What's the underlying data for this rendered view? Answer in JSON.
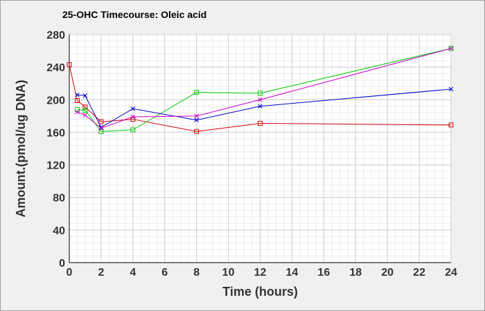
{
  "chart_data": {
    "type": "line",
    "title": "25-OHC Timecourse: Oleic acid",
    "xlabel": "Time (hours)",
    "ylabel": "Amount.(pmol/ug DNA)",
    "xlim": [
      0,
      24
    ],
    "ylim": [
      0,
      280
    ],
    "xticks": [
      0,
      2,
      4,
      6,
      8,
      10,
      12,
      14,
      16,
      18,
      20,
      22,
      24
    ],
    "yticks": [
      0,
      40,
      80,
      120,
      160,
      200,
      240,
      280
    ],
    "minor_grid": true,
    "grid": true,
    "legend": "none",
    "series": [
      {
        "color": "#d00000",
        "marker": "square",
        "x": [
          0,
          0.5,
          1,
          2,
          4,
          8,
          12,
          24
        ],
        "y": [
          243,
          199,
          191,
          173,
          176,
          161,
          171,
          169
        ]
      },
      {
        "color": "#00cc00",
        "marker": "square",
        "x": [
          0.5,
          1,
          2,
          4,
          8,
          12,
          24
        ],
        "y": [
          188,
          187,
          161,
          163,
          209,
          208,
          263
        ]
      },
      {
        "color": "#0000cc",
        "marker": "x",
        "x": [
          0.5,
          1,
          2,
          4,
          8,
          12,
          24
        ],
        "y": [
          206,
          205,
          166,
          189,
          175,
          192,
          213
        ]
      },
      {
        "color": "#cc00cc",
        "marker": "x",
        "x": [
          0.5,
          1,
          2,
          4,
          8,
          12,
          24
        ],
        "y": [
          185,
          181,
          165,
          179,
          180,
          200,
          263
        ]
      }
    ]
  }
}
